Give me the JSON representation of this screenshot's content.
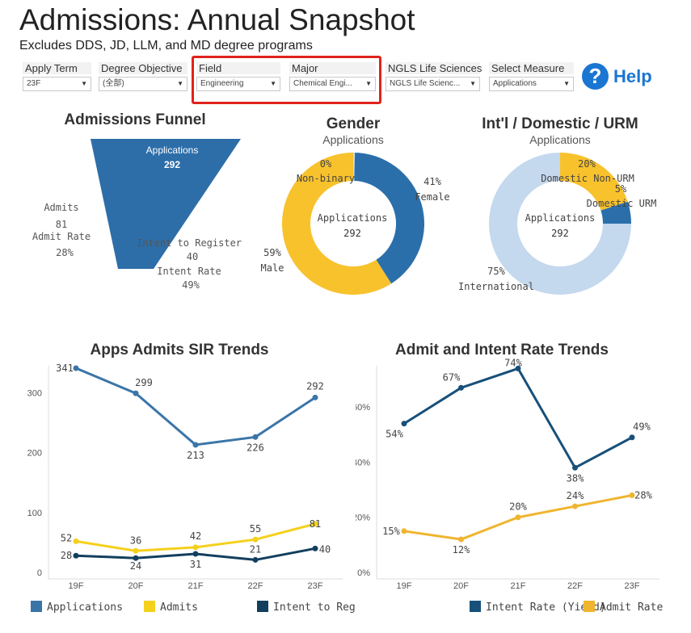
{
  "header": {
    "title": "Admissions: Annual Snapshot",
    "subtitle": "Excludes DDS, JD, LLM, and MD degree programs"
  },
  "filters": [
    {
      "label": "Apply Term",
      "value": "23F"
    },
    {
      "label": "Degree Objective",
      "value": "(全部)"
    },
    {
      "label": "Field",
      "value": "Engineering"
    },
    {
      "label": "Major",
      "value": "Chemical Engi..."
    },
    {
      "label": "NGLS Life Sciences",
      "value": "NGLS Life Scienc..."
    },
    {
      "label": "Select Measure",
      "value": "Applications"
    }
  ],
  "help": {
    "label": "Help",
    "icon": "question-circle-icon"
  },
  "funnel": {
    "title": "Admissions Funnel",
    "color": "#2d6ea9",
    "applications_label": "Applications",
    "applications_value": "292",
    "admits_label": "Admits",
    "admits_value": "81",
    "admit_rate_label": "Admit Rate",
    "admit_rate_value": "28%",
    "intent_label": "Intent to Register",
    "intent_value": "40",
    "intent_rate_label": "Intent Rate",
    "intent_rate_value": "49%"
  },
  "gender": {
    "title": "Gender",
    "subtitle": "Applications",
    "center_label": "Applications",
    "center_value": "292",
    "segments": [
      {
        "name": "Female",
        "value": 41,
        "pct": "41%",
        "color": "#2b6faa"
      },
      {
        "name": "Male",
        "value": 59,
        "pct": "59%",
        "color": "#f8c22d"
      },
      {
        "name": "Non-binary",
        "value": 0,
        "pct": "0%",
        "color": "#c8d9ec"
      }
    ]
  },
  "intl": {
    "title": "Int'l / Domestic / URM",
    "subtitle": "Applications",
    "center_label": "Applications",
    "center_value": "292",
    "segments": [
      {
        "name": "Domestic Non-URM",
        "value": 20,
        "pct": "20%",
        "color": "#f8c22d"
      },
      {
        "name": "Domestic URM",
        "value": 5,
        "pct": "5%",
        "color": "#2b6faa"
      },
      {
        "name": "International",
        "value": 75,
        "pct": "75%",
        "color": "#c4d8ee"
      }
    ]
  },
  "chart_data": [
    {
      "type": "line",
      "title": "Apps Admits SIR Trends",
      "categories": [
        "19F",
        "20F",
        "21F",
        "22F",
        "23F"
      ],
      "ylim": [
        0,
        345
      ],
      "yticks": [
        0,
        100,
        200,
        300
      ],
      "series": [
        {
          "name": "Applications",
          "color": "#3a75a8",
          "values": [
            341,
            299,
            213,
            226,
            292
          ]
        },
        {
          "name": "Admits",
          "color": "#f5d01c",
          "values": [
            52,
            36,
            42,
            55,
            81
          ]
        },
        {
          "name": "Intent to Register",
          "color": "#123f5e",
          "values": [
            28,
            24,
            31,
            21,
            40
          ]
        }
      ],
      "labels": [
        [
          "341",
          "299",
          "213",
          "226",
          "292"
        ],
        [
          "52",
          "36",
          "42",
          "55",
          "81"
        ],
        [
          "28",
          "24",
          "31",
          "21",
          "40"
        ]
      ]
    },
    {
      "type": "line",
      "title": "Admit and Intent Rate Trends",
      "categories": [
        "19F",
        "20F",
        "21F",
        "22F",
        "23F"
      ],
      "ylim": [
        0,
        75
      ],
      "yticks": [
        0,
        20,
        40,
        60
      ],
      "ytick_labels": [
        "0%",
        "20%",
        "40%",
        "60%"
      ],
      "series": [
        {
          "name": "Intent Rate (Yield)",
          "color": "#17507a",
          "values": [
            54,
            67,
            74,
            38,
            49
          ]
        },
        {
          "name": "Admit Rate",
          "color": "#f0b52f",
          "values": [
            15,
            12,
            20,
            24,
            28
          ]
        }
      ],
      "labels": [
        [
          "54%",
          "67%",
          "74%",
          "38%",
          "49%"
        ],
        [
          "15%",
          "12%",
          "20%",
          "24%",
          "28%"
        ]
      ]
    }
  ]
}
